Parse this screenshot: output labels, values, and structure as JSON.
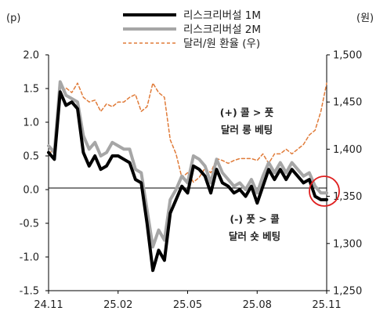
{
  "chart_data": {
    "type": "line",
    "left_unit": "(p)",
    "right_unit": "(원)",
    "x_tick_labels": [
      "24.11",
      "25.02",
      "25.05",
      "25.08",
      "25.11"
    ],
    "left_axis": {
      "min": -1.5,
      "max": 2.0,
      "ticks": [
        2.0,
        1.5,
        1.0,
        0.5,
        0.0,
        -0.5,
        -1.0,
        -1.5
      ],
      "tick_labels": [
        "2.0",
        "1.5",
        "1.0",
        "0.5",
        "0.0",
        "-0.5",
        "-1.0",
        "-1.5"
      ]
    },
    "right_axis": {
      "min": 1250,
      "max": 1500,
      "ticks": [
        1500,
        1450,
        1400,
        1350,
        1300,
        1250
      ],
      "tick_labels": [
        "1,500",
        "1,450",
        "1,400",
        "1,350",
        "1,300",
        "1,250"
      ]
    },
    "legend": [
      {
        "label": "리스크리버설 1M",
        "color": "#000000"
      },
      {
        "label": "리스크리버설 2M",
        "color": "#a6a6a6"
      },
      {
        "label": "달러/원 환율 (우)",
        "color": "#e07b39"
      }
    ],
    "annotations": {
      "upper": [
        "(+) 콜 > 풋",
        "달러 롱 베팅"
      ],
      "lower": [
        "(-) 풋 > 콜",
        "달러 숏 베팅"
      ]
    },
    "x": [
      0,
      0.25,
      0.5,
      0.75,
      1,
      1.25,
      1.5,
      1.75,
      2,
      2.25,
      2.5,
      2.75,
      3,
      3.25,
      3.5,
      3.75,
      4,
      4.25,
      4.5,
      4.75,
      5,
      5.25,
      5.5,
      5.75,
      6,
      6.25,
      6.5,
      6.75,
      7,
      7.25,
      7.5,
      7.75,
      8,
      8.25,
      8.5,
      8.75,
      9,
      9.25,
      9.5,
      9.75,
      10,
      10.25,
      10.5,
      10.75,
      11,
      11.25,
      11.5,
      11.75,
      12
    ],
    "series": [
      {
        "name": "리스크리버설 1M",
        "axis": "left",
        "color": "#000000",
        "values": [
          0.55,
          0.45,
          1.45,
          1.25,
          1.3,
          1.2,
          0.55,
          0.35,
          0.5,
          0.3,
          0.35,
          0.5,
          0.5,
          0.45,
          0.4,
          0.15,
          0.1,
          -0.5,
          -1.2,
          -0.9,
          -1.05,
          -0.35,
          -0.15,
          0.05,
          -0.05,
          0.35,
          0.3,
          0.2,
          -0.05,
          0.3,
          0.1,
          0.05,
          -0.05,
          0.0,
          -0.1,
          0.05,
          -0.2,
          0.05,
          0.3,
          0.15,
          0.3,
          0.15,
          0.3,
          0.2,
          0.1,
          0.15,
          -0.1,
          -0.15,
          -0.15
        ]
      },
      {
        "name": "리스크리버설 2M",
        "axis": "left",
        "color": "#a6a6a6",
        "values": [
          0.65,
          0.55,
          1.6,
          1.4,
          1.35,
          1.3,
          0.8,
          0.6,
          0.7,
          0.5,
          0.55,
          0.7,
          0.65,
          0.6,
          0.6,
          0.3,
          0.25,
          -0.3,
          -0.85,
          -0.6,
          -0.75,
          -0.15,
          0.0,
          0.2,
          0.1,
          0.5,
          0.45,
          0.35,
          0.1,
          0.45,
          0.25,
          0.15,
          0.05,
          0.1,
          0.0,
          0.15,
          -0.05,
          0.2,
          0.4,
          0.25,
          0.4,
          0.25,
          0.4,
          0.3,
          0.2,
          0.25,
          0.05,
          -0.05,
          -0.05
        ]
      },
      {
        "name": "달러/원 환율 (우)",
        "axis": "right",
        "color": "#e07b39",
        "values": [
          1395,
          1400,
          1455,
          1465,
          1460,
          1470,
          1455,
          1450,
          1452,
          1440,
          1448,
          1445,
          1450,
          1450,
          1455,
          1458,
          1440,
          1445,
          1470,
          1460,
          1455,
          1410,
          1395,
          1370,
          1375,
          1365,
          1370,
          1380,
          1375,
          1390,
          1388,
          1385,
          1388,
          1390,
          1390,
          1390,
          1388,
          1395,
          1385,
          1395,
          1395,
          1400,
          1395,
          1400,
          1405,
          1415,
          1420,
          1440,
          1470
        ]
      }
    ],
    "grid": false,
    "legend_position": "top-center"
  }
}
